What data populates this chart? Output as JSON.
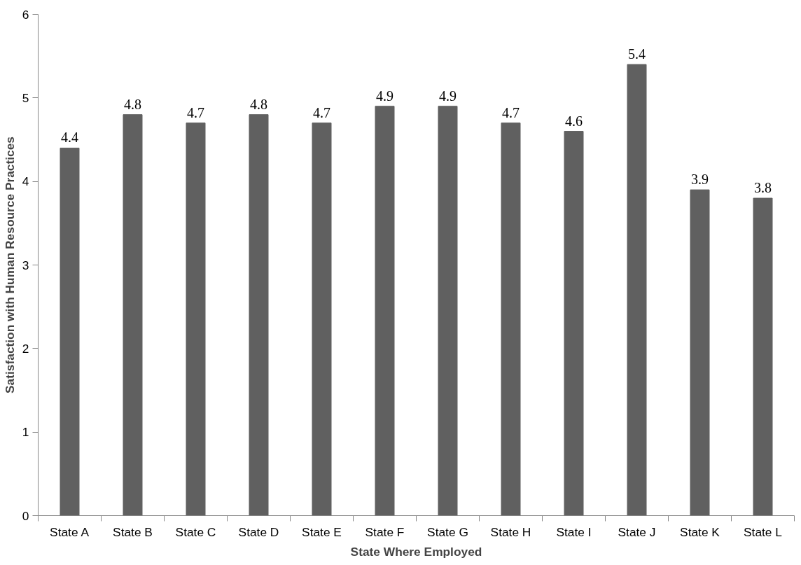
{
  "chart_data": {
    "type": "bar",
    "xlabel": "State Where Employed",
    "ylabel": "Satisfaction with Human Resource Practices",
    "categories": [
      "State A",
      "State B",
      "State C",
      "State D",
      "State E",
      "State F",
      "State G",
      "State H",
      "State I",
      "State J",
      "State K",
      "State L"
    ],
    "values": [
      4.4,
      4.8,
      4.7,
      4.8,
      4.7,
      4.9,
      4.9,
      4.7,
      4.6,
      5.4,
      3.9,
      3.8
    ],
    "color": "#606060",
    "ylim": [
      0,
      6
    ],
    "yticks": [
      0,
      1,
      2,
      3,
      4,
      5,
      6
    ],
    "grid": false,
    "data_labels": true
  }
}
